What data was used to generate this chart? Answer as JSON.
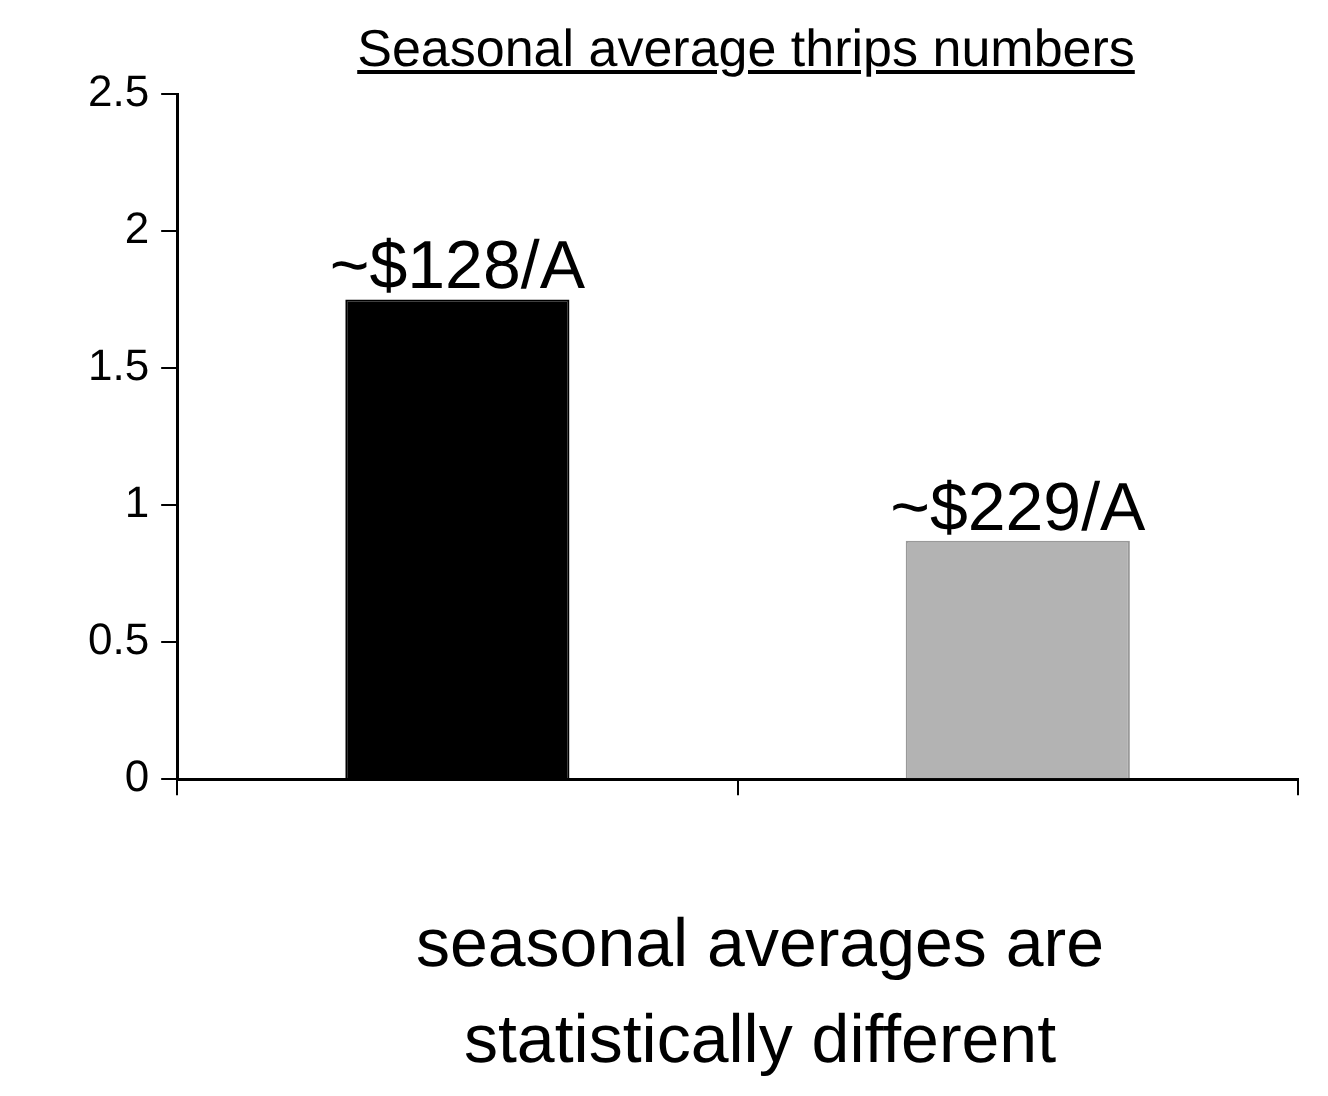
{
  "chart_data": {
    "type": "bar",
    "title": "Seasonal average thrips numbers",
    "categories": [
      null,
      null
    ],
    "values": [
      1.75,
      0.87
    ],
    "colors": [
      "#000000",
      "#b3b3b3"
    ],
    "ylim": [
      0,
      2.5
    ],
    "yticks": [
      0,
      0.5,
      1,
      1.5,
      2,
      2.5
    ],
    "annotations": [
      {
        "text": "~$128/A",
        "y": 1.75
      },
      {
        "text": "~$229/A",
        "y": 0.87
      },
      "seasonal averages are statistically different"
    ]
  }
}
